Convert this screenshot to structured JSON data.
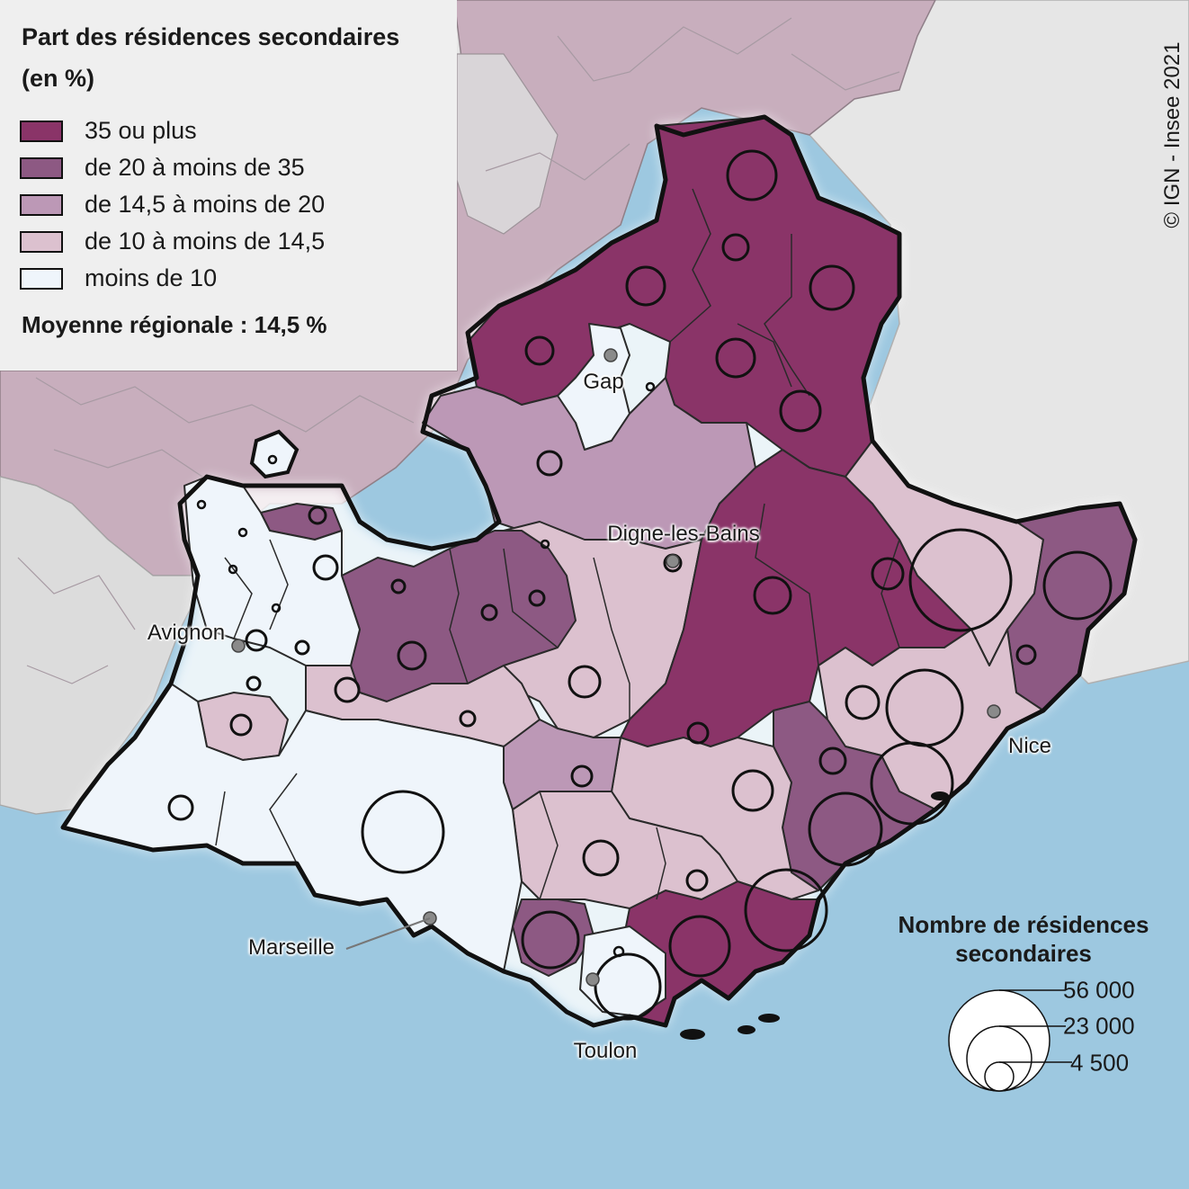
{
  "legend": {
    "title_line1": "Part des résidences secondaires",
    "title_line2": "(en %)",
    "classes": [
      {
        "label": "35 ou plus",
        "color": "#8a3468"
      },
      {
        "label": "de 20 à moins de 35",
        "color": "#8d5983"
      },
      {
        "label": "de 14,5 à moins de 20",
        "color": "#bc98b6"
      },
      {
        "label": "de 10 à moins de 14,5",
        "color": "#dcc1cf"
      },
      {
        "label": "moins de 10",
        "color": "#eff5fb"
      }
    ],
    "mean": "Moyenne régionale : 14,5 %"
  },
  "size_legend": {
    "title_line1": "Nombre de résidences",
    "title_line2": "secondaires",
    "values": [
      "56 000",
      "23 000",
      "4 500"
    ]
  },
  "cities": [
    {
      "name": "Gap"
    },
    {
      "name": "Digne-les-Bains"
    },
    {
      "name": "Avignon"
    },
    {
      "name": "Nice"
    },
    {
      "name": "Marseille"
    },
    {
      "name": "Toulon"
    }
  ],
  "copyright": "© IGN - Insee 2021",
  "colors": {
    "sea": "#9dc8e0",
    "outside_land": "#e8e8e8",
    "neighbor_region": "#c3a9b8",
    "border": "#111111"
  }
}
